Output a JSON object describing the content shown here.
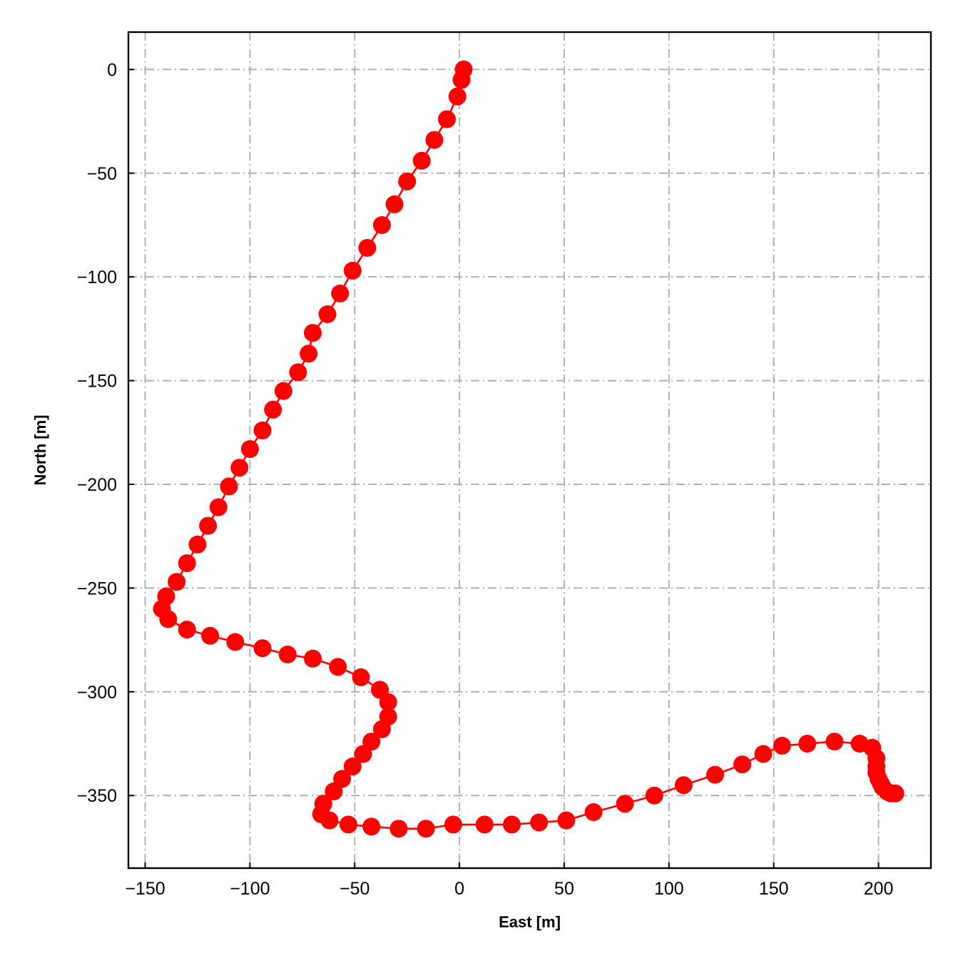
{
  "chart_data": {
    "type": "line",
    "xlabel": "East [m]",
    "ylabel": "North [m]",
    "xlim": [
      -158,
      225
    ],
    "ylim": [
      -385,
      18
    ],
    "grid": true,
    "legend": "none",
    "line_color": "#ff0000",
    "marker_color": "#ff0000",
    "x_ticks": [
      -150,
      -100,
      -50,
      0,
      50,
      100,
      150,
      200
    ],
    "y_ticks": [
      0,
      -50,
      -100,
      -150,
      -200,
      -250,
      -300,
      -350
    ],
    "x_tick_labels": [
      "−150",
      "−100",
      "−50",
      "0",
      "50",
      "100",
      "150",
      "200"
    ],
    "y_tick_labels": [
      "0",
      "−50",
      "−100",
      "−150",
      "−200",
      "−250",
      "−300",
      "−350"
    ],
    "series": [
      {
        "x": [
          2,
          1,
          -1,
          -6,
          -12,
          -18,
          -25,
          -31,
          -37,
          -44,
          -51,
          -57,
          -63,
          -70,
          -72,
          -77,
          -84,
          -89,
          -94,
          -100,
          -105,
          -110,
          -115,
          -120,
          -125,
          -130,
          -135,
          -140,
          -142,
          -139,
          -130,
          -119,
          -107,
          -94,
          -82,
          -70,
          -58,
          -47,
          -38,
          -34,
          -34,
          -37,
          -42,
          -46,
          -51,
          -56,
          -60,
          -65,
          -66,
          -62,
          -53,
          -42,
          -29,
          -16,
          -3,
          12,
          25,
          38,
          51,
          64,
          79,
          93,
          107,
          122,
          135,
          145,
          154,
          166,
          179,
          191,
          197,
          199,
          199,
          199,
          200,
          201,
          202,
          204,
          206,
          208
        ],
        "y": [
          0,
          -5,
          -13,
          -24,
          -34,
          -44,
          -54,
          -65,
          -75,
          -86,
          -97,
          -108,
          -118,
          -127,
          -137,
          -146,
          -155,
          -164,
          -174,
          -183,
          -192,
          -201,
          -211,
          -220,
          -229,
          -238,
          -247,
          -254,
          -260,
          -265,
          -270,
          -273,
          -276,
          -279,
          -282,
          -284,
          -288,
          -293,
          -299,
          -305,
          -312,
          -318,
          -324,
          -330,
          -336,
          -342,
          -348,
          -354,
          -359,
          -362,
          -364,
          -365,
          -366,
          -366,
          -364,
          -364,
          -364,
          -363,
          -362,
          -358,
          -354,
          -350,
          -345,
          -340,
          -335,
          -330,
          -326,
          -325,
          -324,
          -325,
          -327,
          -332,
          -336,
          -339,
          -342,
          -344,
          -346,
          -348,
          -349,
          -349
        ]
      }
    ]
  }
}
